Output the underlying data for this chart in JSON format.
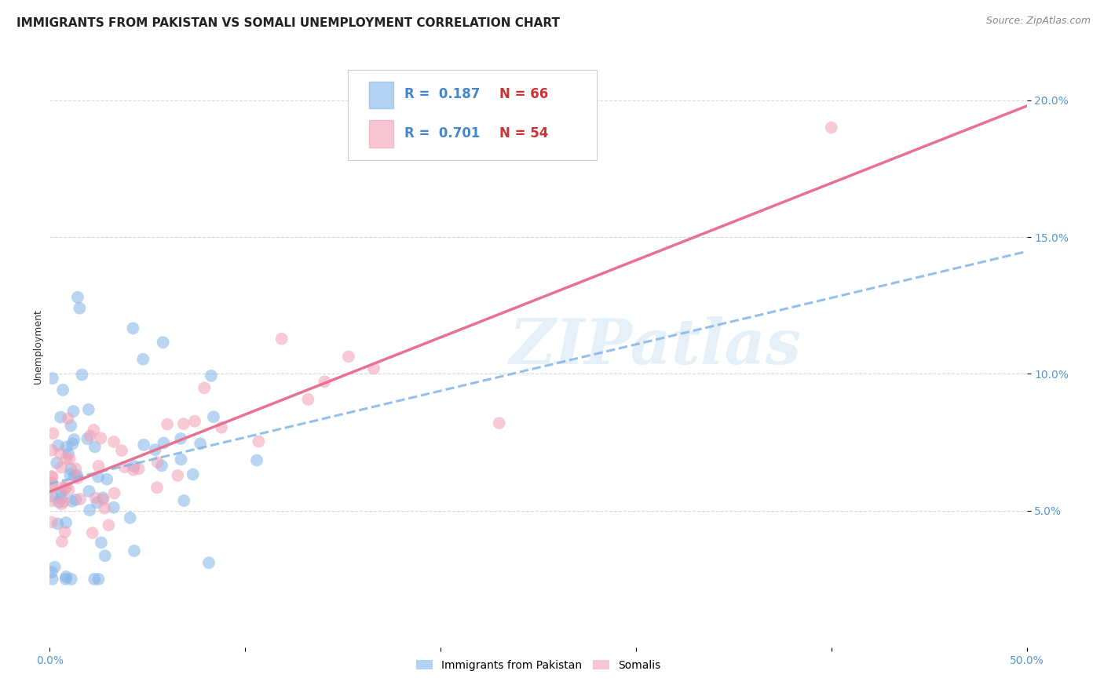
{
  "title": "IMMIGRANTS FROM PAKISTAN VS SOMALI UNEMPLOYMENT CORRELATION CHART",
  "source": "Source: ZipAtlas.com",
  "ylabel": "Unemployment",
  "xlim": [
    0.0,
    0.5
  ],
  "ylim": [
    0.0,
    0.22
  ],
  "xtick_vals": [
    0.0,
    0.1,
    0.2,
    0.3,
    0.4,
    0.5
  ],
  "xticklabels": [
    "0.0%",
    "",
    "",
    "",
    "",
    "50.0%"
  ],
  "ytick_right_vals": [
    0.05,
    0.1,
    0.15,
    0.2
  ],
  "ytick_right_labels": [
    "5.0%",
    "10.0%",
    "15.0%",
    "20.0%"
  ],
  "pakistan_color": "#82b4e8",
  "somali_color": "#f4a0b4",
  "pakistan_line_color": "#82b4e8",
  "somali_line_color": "#e87090",
  "pakistan_R": 0.187,
  "pakistan_N": 66,
  "somali_R": 0.701,
  "somali_N": 54,
  "watermark_text": "ZIPatlas",
  "watermark_color": "#c8dff0",
  "background_color": "#ffffff",
  "grid_color": "#d8d8d8",
  "title_fontsize": 11,
  "source_fontsize": 9,
  "axis_label_fontsize": 9,
  "tick_fontsize": 10,
  "legend_fontsize": 12
}
